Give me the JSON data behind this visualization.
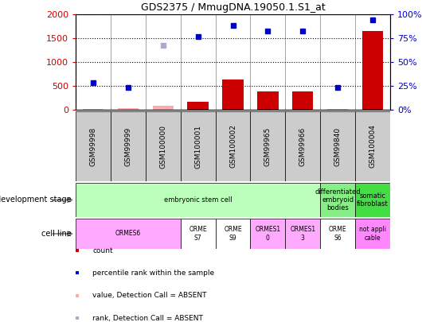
{
  "title": "GDS2375 / MmugDNA.19050.1.S1_at",
  "samples": [
    "GSM99998",
    "GSM99999",
    "GSM100000",
    "GSM100001",
    "GSM100002",
    "GSM99965",
    "GSM99966",
    "GSM99840",
    "GSM100004"
  ],
  "count_values": [
    20,
    30,
    80,
    170,
    630,
    390,
    380,
    20,
    1660
  ],
  "count_absent": [
    true,
    true,
    true,
    false,
    false,
    false,
    false,
    true,
    false
  ],
  "rank_values": [
    560,
    460,
    1360,
    1540,
    1770,
    1650,
    1650,
    460,
    1890
  ],
  "rank_absent": [
    false,
    false,
    true,
    false,
    false,
    false,
    false,
    false,
    false
  ],
  "ylim_left": [
    0,
    2000
  ],
  "ylim_right": [
    0,
    100
  ],
  "yticks_left": [
    0,
    500,
    1000,
    1500,
    2000
  ],
  "yticks_right": [
    0,
    25,
    50,
    75,
    100
  ],
  "ytick_labels_right": [
    "0%",
    "25%",
    "50%",
    "75%",
    "100%"
  ],
  "bar_color_present": "#cc0000",
  "bar_color_absent": "#ffaaaa",
  "dot_color_present": "#0000cc",
  "dot_color_absent": "#aaaacc",
  "dev_regions": [
    {
      "start": 0,
      "end": 7,
      "color": "#bbffbb",
      "label": "embryonic stem cell"
    },
    {
      "start": 7,
      "end": 8,
      "color": "#88ee88",
      "label": "differentiated\nembryoid\nbodies"
    },
    {
      "start": 8,
      "end": 9,
      "color": "#44dd44",
      "label": "somatic\nfibroblast"
    }
  ],
  "cell_regions": [
    {
      "start": 0,
      "end": 3,
      "color": "#ffaaff",
      "label": "ORMES6"
    },
    {
      "start": 3,
      "end": 4,
      "color": "#ffffff",
      "label": "ORME\nS7"
    },
    {
      "start": 4,
      "end": 5,
      "color": "#ffffff",
      "label": "ORME\nS9"
    },
    {
      "start": 5,
      "end": 6,
      "color": "#ffaaff",
      "label": "ORMES1\n0"
    },
    {
      "start": 6,
      "end": 7,
      "color": "#ffaaff",
      "label": "ORMES1\n3"
    },
    {
      "start": 7,
      "end": 8,
      "color": "#ffffff",
      "label": "ORME\nS6"
    },
    {
      "start": 8,
      "end": 9,
      "color": "#ff88ff",
      "label": "not appli\ncable"
    }
  ],
  "legend_items": [
    {
      "label": "count",
      "color": "#cc0000"
    },
    {
      "label": "percentile rank within the sample",
      "color": "#0000cc"
    },
    {
      "label": "value, Detection Call = ABSENT",
      "color": "#ffaaaa"
    },
    {
      "label": "rank, Detection Call = ABSENT",
      "color": "#aaaacc"
    }
  ],
  "left_label_dev": "development stage",
  "left_label_cell": "cell line",
  "sample_box_color": "#cccccc"
}
